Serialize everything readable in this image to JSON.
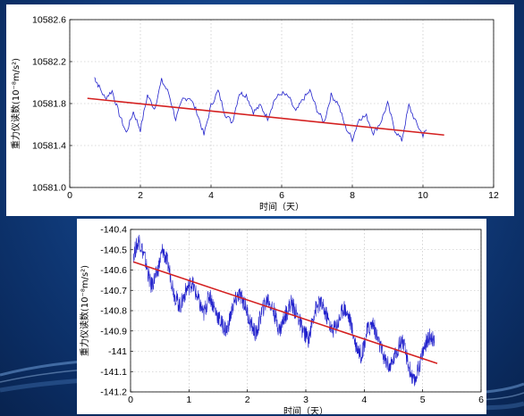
{
  "colors": {
    "background": "#124083",
    "series": "#2222cc",
    "trend": "#d42020",
    "grid": "#b8b8b8"
  },
  "chart_data": [
    {
      "type": "line",
      "xlabel": "时间（天）",
      "ylabel": "重力仪读数(10⁻⁸m/s²)",
      "xlim": [
        0,
        12
      ],
      "ylim": [
        10581.0,
        10582.6
      ],
      "xticks": [
        "0",
        "2",
        "4",
        "6",
        "8",
        "10",
        "12"
      ],
      "yticks": [
        "10582.6",
        "10582.2",
        "10581.8",
        "10581.4",
        "10581.0"
      ],
      "grid": true,
      "series": [
        {
          "kind": "raw",
          "x": [
            0.7,
            0.8,
            1.0,
            1.2,
            1.4,
            1.6,
            1.8,
            2.0,
            2.2,
            2.4,
            2.6,
            2.8,
            3.0,
            3.2,
            3.4,
            3.6,
            3.8,
            4.0,
            4.2,
            4.4,
            4.6,
            4.8,
            5.0,
            5.2,
            5.4,
            5.6,
            5.8,
            6.0,
            6.2,
            6.4,
            6.6,
            6.8,
            7.0,
            7.2,
            7.4,
            7.6,
            7.8,
            8.0,
            8.2,
            8.4,
            8.6,
            8.8,
            9.0,
            9.2,
            9.4,
            9.6,
            9.8,
            10.0,
            10.1
          ],
          "y": [
            10582.05,
            10581.98,
            10581.85,
            10581.92,
            10581.7,
            10581.52,
            10581.72,
            10581.55,
            10581.88,
            10581.75,
            10582.02,
            10581.9,
            10581.65,
            10581.84,
            10581.86,
            10581.72,
            10581.5,
            10581.78,
            10581.92,
            10581.7,
            10581.62,
            10581.9,
            10581.88,
            10581.72,
            10581.78,
            10581.66,
            10581.84,
            10581.9,
            10581.86,
            10581.72,
            10581.84,
            10581.92,
            10581.74,
            10581.62,
            10581.88,
            10581.8,
            10581.58,
            10581.46,
            10581.66,
            10581.68,
            10581.52,
            10581.62,
            10581.8,
            10581.55,
            10581.45,
            10581.78,
            10581.62,
            10581.5,
            10581.55
          ]
        },
        {
          "kind": "trend",
          "x": [
            0.5,
            10.6
          ],
          "y": [
            10581.85,
            10581.5
          ]
        }
      ]
    },
    {
      "type": "line",
      "xlabel": "时间（天）",
      "ylabel": "重力仪读数(10⁻⁸m/s²)",
      "xlim": [
        0,
        6
      ],
      "ylim": [
        -141.2,
        -140.4
      ],
      "xticks": [
        "0",
        "1",
        "2",
        "3",
        "4",
        "5",
        "6"
      ],
      "yticks": [
        "-140.4",
        "-140.5",
        "-140.6",
        "-140.7",
        "-140.8",
        "-140.9",
        "-141",
        "-141.1",
        "-141.2"
      ],
      "grid": true,
      "series": [
        {
          "kind": "raw",
          "x": [
            0.05,
            0.15,
            0.25,
            0.35,
            0.45,
            0.55,
            0.65,
            0.75,
            0.85,
            0.95,
            1.05,
            1.15,
            1.25,
            1.35,
            1.45,
            1.55,
            1.65,
            1.75,
            1.85,
            1.95,
            2.05,
            2.15,
            2.25,
            2.35,
            2.45,
            2.55,
            2.65,
            2.75,
            2.85,
            2.95,
            3.05,
            3.15,
            3.25,
            3.35,
            3.45,
            3.55,
            3.65,
            3.75,
            3.85,
            3.95,
            4.05,
            4.15,
            4.25,
            4.35,
            4.45,
            4.55,
            4.65,
            4.75,
            4.85,
            4.95,
            5.05,
            5.15,
            5.2
          ],
          "y": [
            -140.52,
            -140.45,
            -140.55,
            -140.68,
            -140.62,
            -140.5,
            -140.58,
            -140.72,
            -140.78,
            -140.7,
            -140.66,
            -140.74,
            -140.82,
            -140.72,
            -140.8,
            -140.86,
            -140.9,
            -140.78,
            -140.72,
            -140.76,
            -140.86,
            -140.92,
            -140.8,
            -140.74,
            -140.8,
            -140.9,
            -140.82,
            -140.76,
            -140.82,
            -140.9,
            -140.94,
            -140.8,
            -140.76,
            -140.82,
            -140.9,
            -140.86,
            -140.78,
            -140.84,
            -140.96,
            -141.02,
            -140.9,
            -140.86,
            -140.96,
            -141.04,
            -141.08,
            -141.0,
            -140.94,
            -141.06,
            -141.16,
            -141.06,
            -140.96,
            -140.92,
            -140.96
          ]
        },
        {
          "kind": "trend",
          "x": [
            0.05,
            5.25
          ],
          "y": [
            -140.56,
            -141.06
          ]
        }
      ]
    }
  ]
}
